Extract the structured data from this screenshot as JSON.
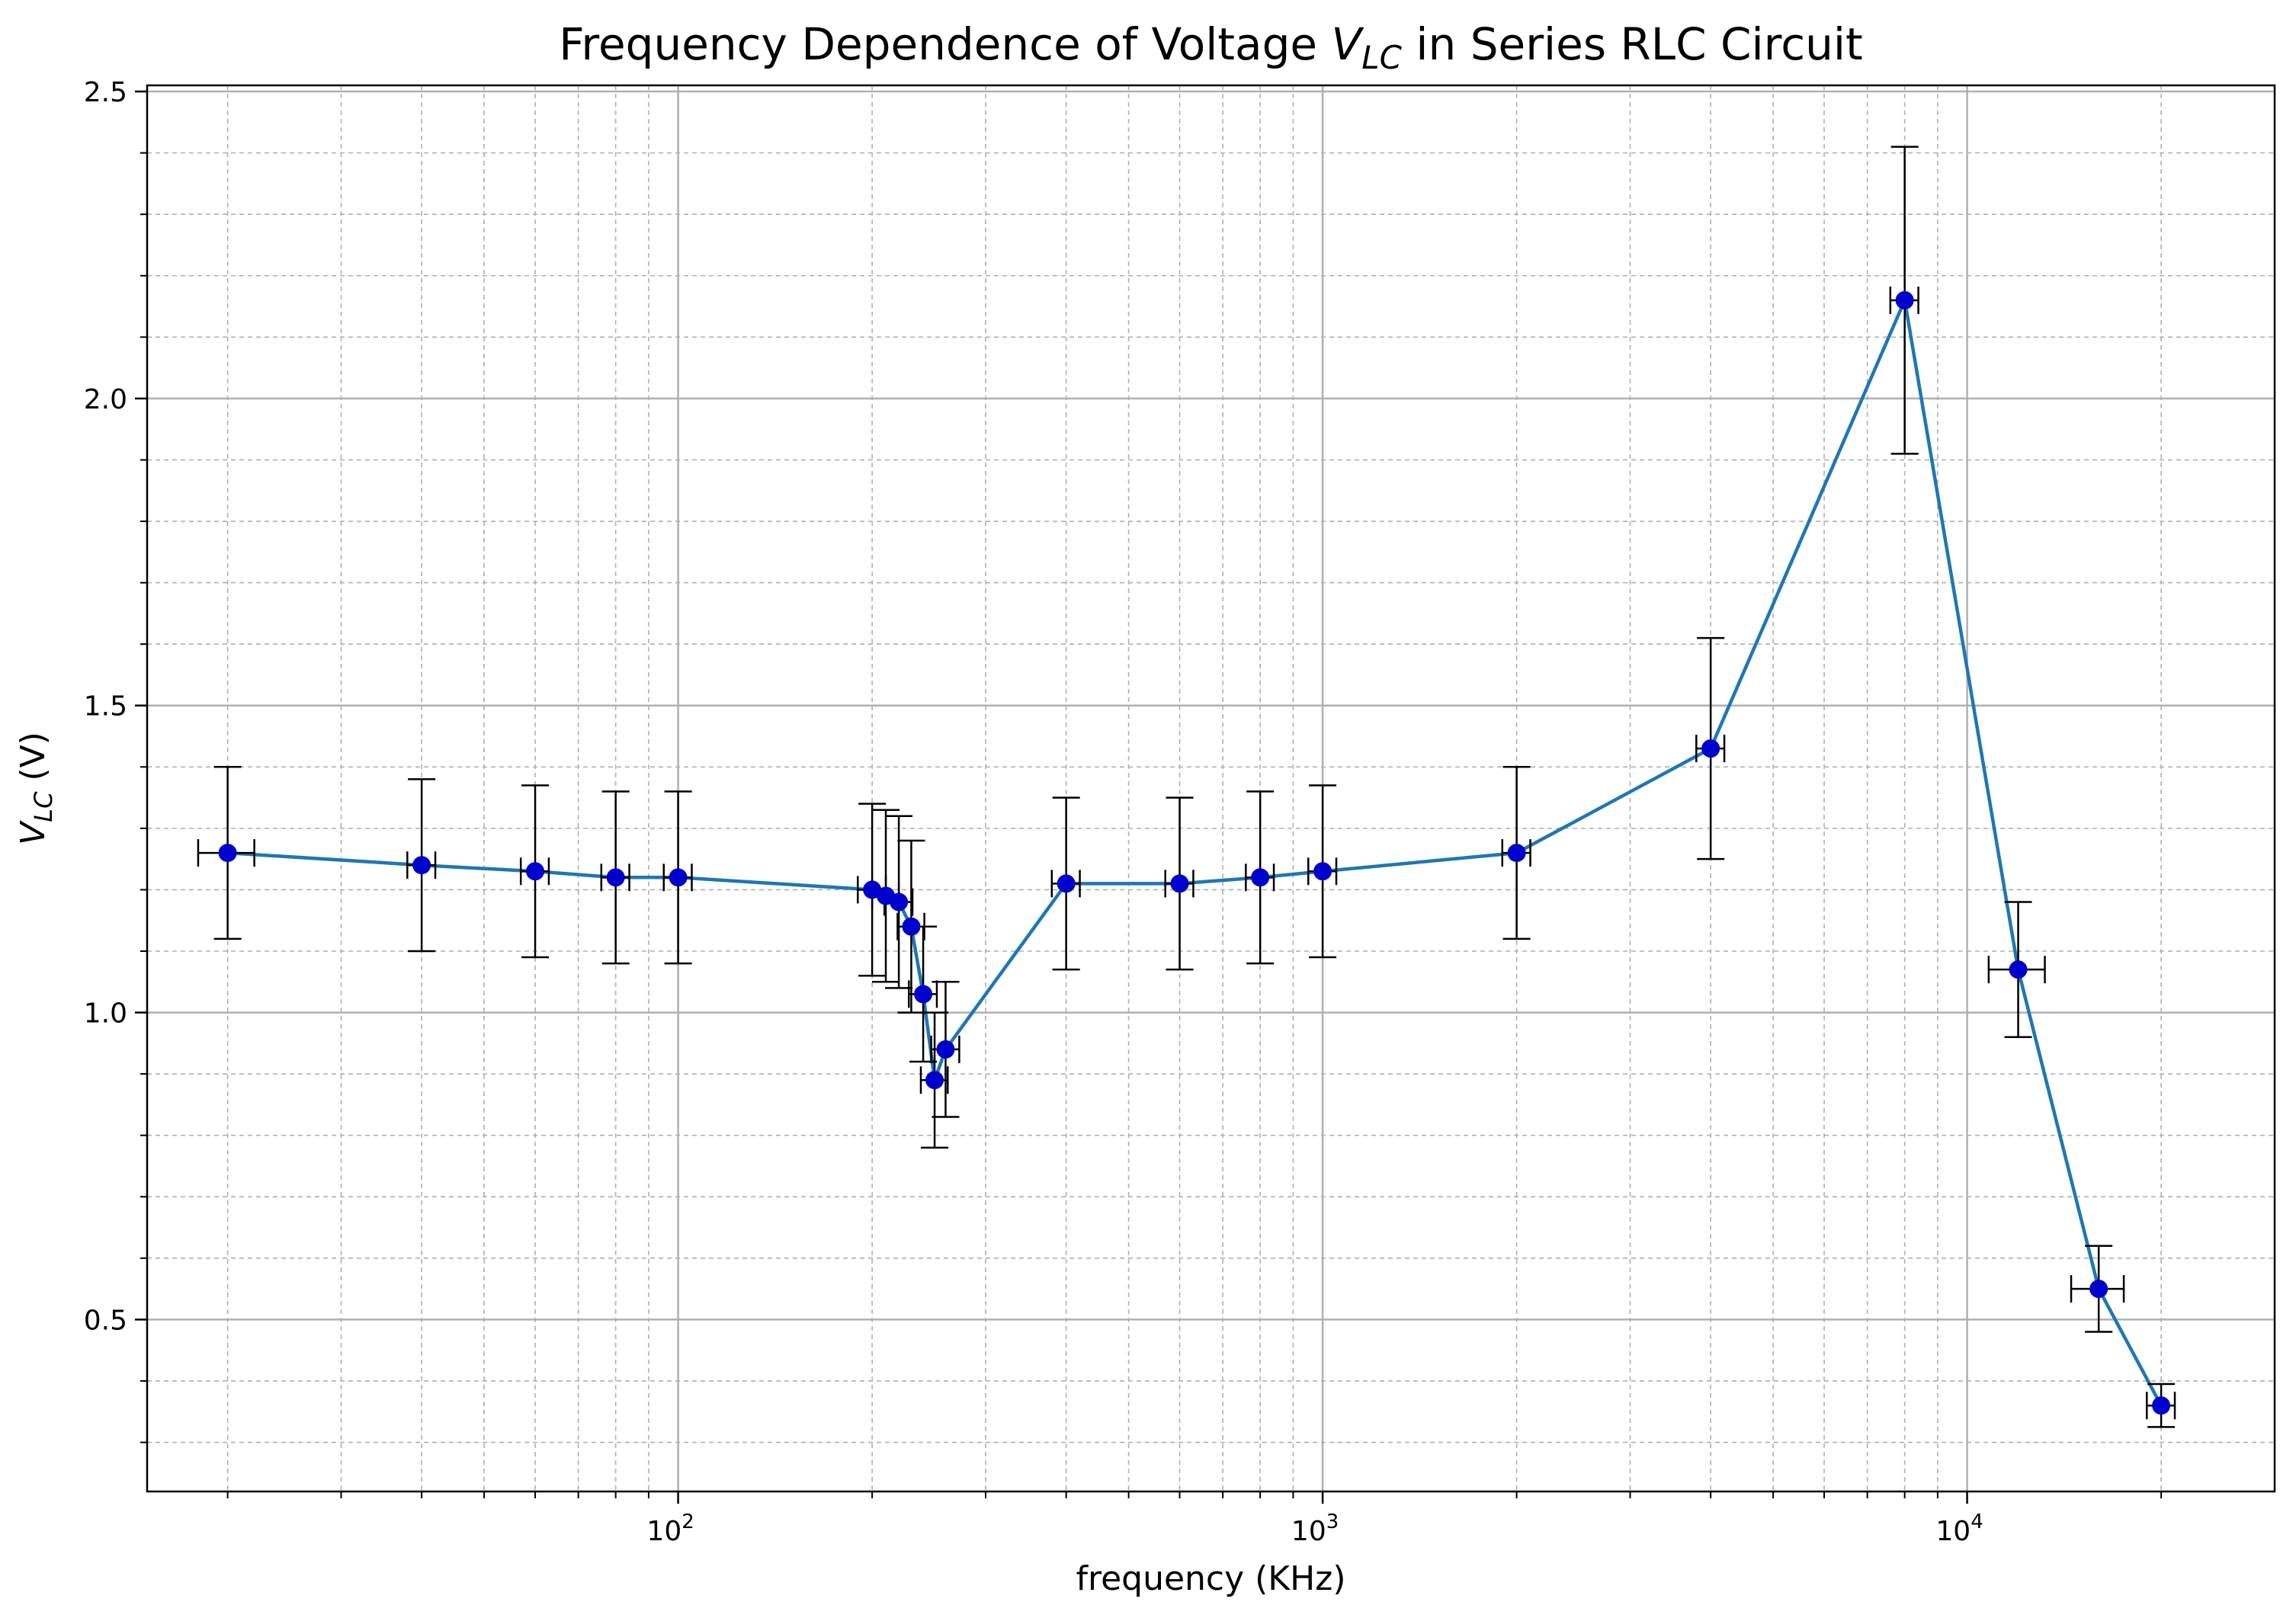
{
  "chart_data": {
    "type": "line",
    "title_parts": {
      "pre": "Frequency Dependence of Voltage ",
      "math_main": "V",
      "math_sub": "LC",
      "post": " in Series RLC Circuit"
    },
    "xlabel": "frequency (KHz)",
    "ylabel_parts": {
      "math_main": "V",
      "math_sub": "LC",
      "post": " (V)"
    },
    "xscale": "log",
    "xlim": [
      15,
      30000
    ],
    "ylim": [
      0.22,
      2.51
    ],
    "grid": {
      "major": true,
      "minor": true,
      "major_color": "#b0b0b0",
      "minor_color": "#b0b0b0",
      "minor_style": "dashed"
    },
    "x_ticks": [
      {
        "value": 100,
        "base": "10",
        "exp": "2"
      },
      {
        "value": 1000,
        "base": "10",
        "exp": "3"
      },
      {
        "value": 10000,
        "base": "10",
        "exp": "4"
      }
    ],
    "y_ticks": [
      {
        "value": 0.5,
        "label": "0.5"
      },
      {
        "value": 1.0,
        "label": "1.0"
      },
      {
        "value": 1.5,
        "label": "1.5"
      },
      {
        "value": 2.0,
        "label": "2.0"
      },
      {
        "value": 2.5,
        "label": "2.5"
      }
    ],
    "series": [
      {
        "line_color": "#1f77b4",
        "marker_color": "#0000cd",
        "errorbar_color": "#000000",
        "points": [
          {
            "x": 20,
            "y": 1.26,
            "yerr": 0.14,
            "xerr": 2
          },
          {
            "x": 40,
            "y": 1.24,
            "yerr": 0.14,
            "xerr": 2
          },
          {
            "x": 60,
            "y": 1.23,
            "yerr": 0.14,
            "xerr": 3
          },
          {
            "x": 80,
            "y": 1.22,
            "yerr": 0.14,
            "xerr": 4
          },
          {
            "x": 100,
            "y": 1.22,
            "yerr": 0.14,
            "xerr": 5
          },
          {
            "x": 200,
            "y": 1.2,
            "yerr": 0.14,
            "xerr": 10
          },
          {
            "x": 210,
            "y": 1.19,
            "yerr": 0.14,
            "xerr": 10
          },
          {
            "x": 220,
            "y": 1.18,
            "yerr": 0.14,
            "xerr": 11
          },
          {
            "x": 230,
            "y": 1.14,
            "yerr": 0.14,
            "xerr": 11
          },
          {
            "x": 240,
            "y": 1.03,
            "yerr": 0.11,
            "xerr": 12
          },
          {
            "x": 250,
            "y": 0.89,
            "yerr": 0.11,
            "xerr": 12
          },
          {
            "x": 260,
            "y": 0.94,
            "yerr": 0.11,
            "xerr": 13
          },
          {
            "x": 400,
            "y": 1.21,
            "yerr": 0.14,
            "xerr": 20
          },
          {
            "x": 600,
            "y": 1.21,
            "yerr": 0.14,
            "xerr": 30
          },
          {
            "x": 800,
            "y": 1.22,
            "yerr": 0.14,
            "xerr": 40
          },
          {
            "x": 1000,
            "y": 1.23,
            "yerr": 0.14,
            "xerr": 50
          },
          {
            "x": 2000,
            "y": 1.26,
            "yerr": 0.14,
            "xerr": 100
          },
          {
            "x": 4000,
            "y": 1.43,
            "yerr": 0.18,
            "xerr": 200
          },
          {
            "x": 8000,
            "y": 2.16,
            "yerr": 0.25,
            "xerr": 400
          },
          {
            "x": 12000,
            "y": 1.07,
            "yerr": 0.11,
            "xerr": 1200
          },
          {
            "x": 16000,
            "y": 0.55,
            "yerr": 0.07,
            "xerr": 1500
          },
          {
            "x": 20000,
            "y": 0.36,
            "yerr": 0.035,
            "xerr": 1000
          }
        ]
      }
    ]
  }
}
